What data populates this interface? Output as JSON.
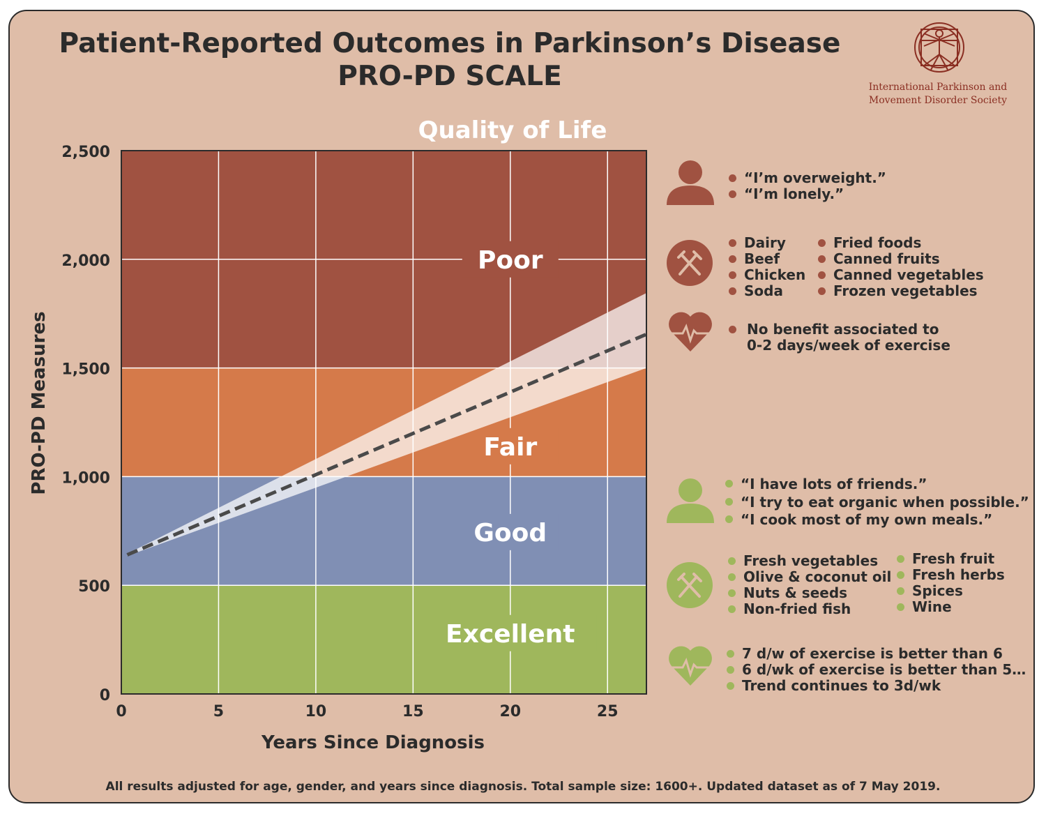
{
  "header": {
    "title_line1": "Patient-Reported Outcomes in Parkinson’s Disease",
    "title_line2": "PRO-PD SCALE"
  },
  "logo": {
    "org_name_line1": "International Parkinson and",
    "org_name_line2": "Movement Disorder Society",
    "icon": "vitruvian-man-seal-icon",
    "color": "#8a2e22"
  },
  "chart_data": {
    "type": "line",
    "title": "Quality of Life",
    "xlabel": "Years Since Diagnosis",
    "ylabel": "PRO-PD Measures",
    "xlim": [
      0,
      27
    ],
    "ylim": [
      0,
      2500
    ],
    "x_ticks": [
      0,
      5,
      10,
      15,
      20,
      25
    ],
    "y_ticks": [
      0,
      500,
      1000,
      1500,
      2000,
      2500
    ],
    "y_tick_labels": [
      "0",
      "500",
      "1,000",
      "1,500",
      "2,000",
      "2,500"
    ],
    "grid": true,
    "bands": [
      {
        "label": "Excellent",
        "from": 0,
        "to": 500,
        "color": "#9fb75c"
      },
      {
        "label": "Good",
        "from": 500,
        "to": 1000,
        "color": "#808fb4"
      },
      {
        "label": "Fair",
        "from": 1000,
        "to": 1500,
        "color": "#d57a4a"
      },
      {
        "label": "Poor",
        "from": 1500,
        "to": 2500,
        "color": "#a05241"
      }
    ],
    "series": [
      {
        "style": "dashed",
        "color": "#4a4a4a",
        "x": [
          0.3,
          27
        ],
        "y": [
          640,
          1655
        ]
      }
    ],
    "confidence_band": {
      "x": [
        0.3,
        27
      ],
      "upper": [
        645,
        1845
      ],
      "lower": [
        635,
        1500
      ]
    }
  },
  "poor_side": {
    "person_quotes": [
      "“I’m overweight.”",
      "“I’m lonely.”"
    ],
    "foods_col1": [
      "Dairy",
      "Beef",
      "Chicken",
      "Soda"
    ],
    "foods_col2": [
      "Fried foods",
      "Canned fruits",
      "Canned vegetables",
      "Frozen vegetables"
    ],
    "exercise": [
      "No benefit associated to",
      "0-2 days/week of exercise"
    ],
    "color": "#a05241"
  },
  "good_side": {
    "person_quotes": [
      "“I have lots of friends.”",
      "“I try to eat organic when possible.”",
      "“I cook most of my own meals.”"
    ],
    "foods_col1": [
      "Fresh vegetables",
      "Olive & coconut oil",
      "Nuts & seeds",
      "Non-fried fish"
    ],
    "foods_col2": [
      "Fresh fruit",
      "Fresh herbs",
      "Spices",
      "Wine"
    ],
    "exercise": [
      "7 d/w of exercise is better than 6",
      "6 d/wk of exercise is better than 5…",
      "Trend continues to 3d/wk"
    ],
    "color": "#9fb75c"
  },
  "footnote": "All results adjusted for age, gender, and years since diagnosis. Total sample size: 1600+. Updated dataset as of 7 May 2019."
}
